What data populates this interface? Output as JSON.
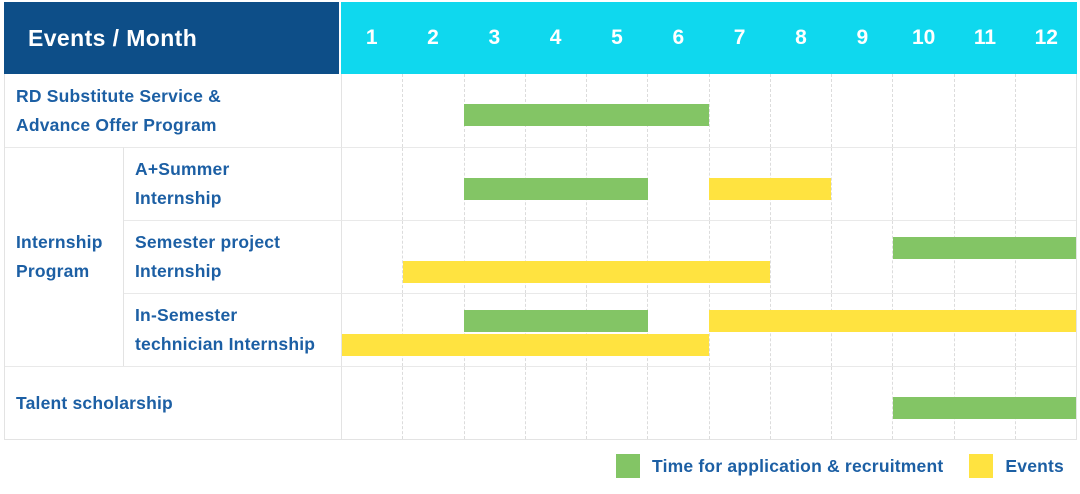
{
  "header": {
    "title": "Events / Month"
  },
  "colors": {
    "header_bg": "#0D4E88",
    "month_header_bg": "#0FD8EE",
    "green": "#83C565",
    "yellow": "#FFE340",
    "label_text": "#1C5FA4",
    "header_text": "#FFFFFF"
  },
  "chart_data": {
    "type": "bar",
    "variant": "gantt",
    "title": "Events / Month",
    "months": [
      "1",
      "2",
      "3",
      "4",
      "5",
      "6",
      "7",
      "8",
      "9",
      "10",
      "11",
      "12"
    ],
    "x_range": [
      1,
      12
    ],
    "grid": "dashed-vertical",
    "group": {
      "label_lines": [
        "Internship",
        "Program"
      ],
      "rows": [
        2,
        4
      ]
    },
    "rows": [
      {
        "id": "rd-substitute-service",
        "grouped": false,
        "label_lines": [
          "RD Substitute Service &",
          "Advance Offer Program"
        ],
        "lines": [
          [
            {
              "type": "application",
              "start_month": 3,
              "end_month": 6
            }
          ]
        ]
      },
      {
        "id": "a-plus-summer-internship",
        "grouped": true,
        "label_lines": [
          "A+Summer",
          "Internship"
        ],
        "lines": [
          [
            {
              "type": "application",
              "start_month": 3,
              "end_month": 5
            },
            {
              "type": "events",
              "start_month": 7,
              "end_month": 8
            }
          ]
        ]
      },
      {
        "id": "semester-project-internship",
        "grouped": true,
        "label_lines": [
          "Semester project",
          "Internship"
        ],
        "lines": [
          [
            {
              "type": "application",
              "start_month": 10,
              "end_month": 12
            }
          ],
          [
            {
              "type": "events",
              "start_month": 2,
              "end_month": 7
            }
          ]
        ]
      },
      {
        "id": "in-semester-technician-internship",
        "grouped": true,
        "label_lines": [
          "In-Semester",
          "technician Internship"
        ],
        "lines": [
          [
            {
              "type": "application",
              "start_month": 3,
              "end_month": 5
            },
            {
              "type": "events",
              "start_month": 7,
              "end_month": 12
            }
          ],
          [
            {
              "type": "events",
              "start_month": 1,
              "end_month": 6
            }
          ]
        ]
      },
      {
        "id": "talent-scholarship",
        "grouped": false,
        "label_lines": [
          "Talent scholarship"
        ],
        "lines": [
          [
            {
              "type": "application",
              "start_month": 10,
              "end_month": 12
            }
          ]
        ]
      }
    ],
    "legend": [
      {
        "type": "application",
        "label": "Time for application & recruitment",
        "color": "#83C565"
      },
      {
        "type": "events",
        "label": "Events",
        "color": "#FFE340"
      }
    ],
    "legend_position": "bottom-right"
  }
}
